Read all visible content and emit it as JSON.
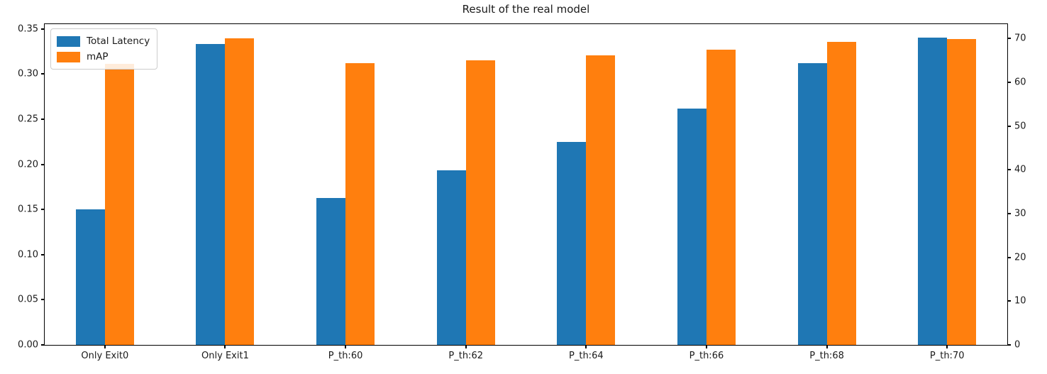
{
  "title": "Result of the real model",
  "legend": {
    "position": "upper left",
    "items": [
      {
        "label": "Total Latency",
        "color": "#1f77b4"
      },
      {
        "label": "mAP",
        "color": "#ff7f0e"
      }
    ]
  },
  "chart_data": {
    "type": "bar",
    "title": "Result of the real model",
    "categories": [
      "Only Exit0",
      "Only Exit1",
      "P_th:60",
      "P_th:62",
      "P_th:64",
      "P_th:66",
      "P_th:68",
      "P_th:70"
    ],
    "series": [
      {
        "name": "Total Latency",
        "axis": "left",
        "color": "#1f77b4",
        "values": [
          0.15,
          0.333,
          0.163,
          0.193,
          0.225,
          0.262,
          0.312,
          0.34
        ]
      },
      {
        "name": "mAP",
        "axis": "right",
        "color": "#ff7f0e",
        "values": [
          64.2,
          70.0,
          64.3,
          65.1,
          66.1,
          67.4,
          69.3,
          69.9
        ]
      }
    ],
    "left_axis": {
      "tick_labels": [
        "0.00",
        "0.05",
        "0.10",
        "0.15",
        "0.20",
        "0.25",
        "0.30",
        "0.35"
      ],
      "tick_values": [
        0.0,
        0.05,
        0.1,
        0.15,
        0.2,
        0.25,
        0.3,
        0.35
      ],
      "min": 0,
      "max": 0.3553
    },
    "right_axis": {
      "tick_labels": [
        "0",
        "10",
        "20",
        "30",
        "40",
        "50",
        "60",
        "70"
      ],
      "tick_values": [
        0,
        10,
        20,
        30,
        40,
        50,
        60,
        70
      ],
      "min": 0,
      "max": 73.3
    },
    "xlabel": "",
    "ylabel": "",
    "grid": false,
    "legend_position": "upper left"
  }
}
